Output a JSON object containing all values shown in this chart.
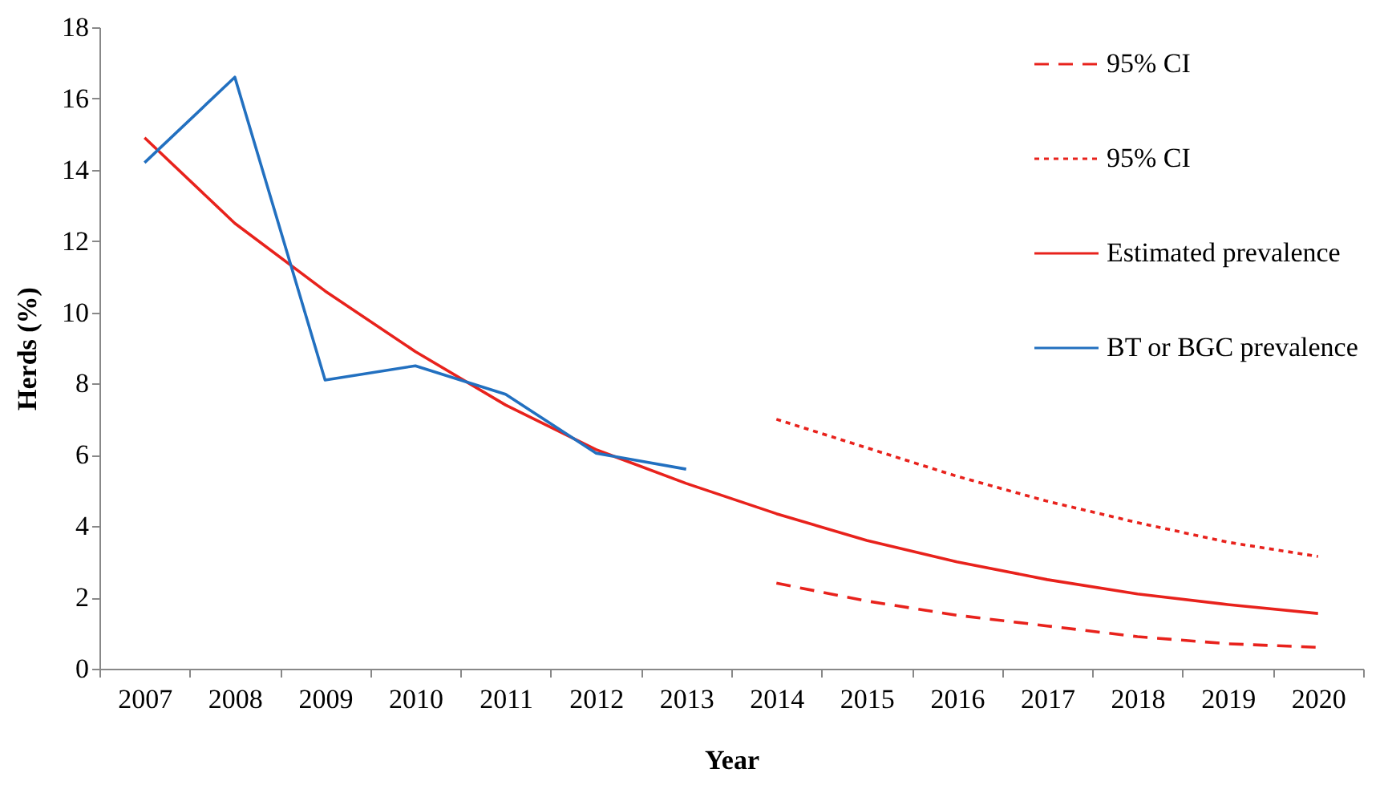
{
  "chart_data": {
    "type": "line",
    "xlabel": "Year",
    "ylabel": "Herds (%)",
    "categories": [
      "2007",
      "2008",
      "2009",
      "2010",
      "2011",
      "2012",
      "2013",
      "2014",
      "2015",
      "2016",
      "2017",
      "2018",
      "2019",
      "2020"
    ],
    "ylim": [
      0,
      18
    ],
    "yticks": [
      0,
      2,
      4,
      6,
      8,
      10,
      12,
      14,
      16,
      18
    ],
    "grid": false,
    "legend": "top right",
    "series": [
      {
        "name": "95% CI",
        "color": "#e8221c",
        "line_style": "dashed",
        "values": [
          null,
          null,
          null,
          null,
          null,
          null,
          null,
          2.4,
          1.9,
          1.5,
          1.2,
          0.9,
          0.7,
          0.6
        ]
      },
      {
        "name": "95% CI",
        "color": "#e8221c",
        "line_style": "dotted",
        "values": [
          null,
          null,
          null,
          null,
          null,
          null,
          null,
          7.0,
          6.2,
          5.4,
          4.7,
          4.1,
          3.55,
          3.15
        ]
      },
      {
        "name": "Estimated prevalence",
        "color": "#e8221c",
        "line_style": "solid",
        "values": [
          14.9,
          12.5,
          10.6,
          8.9,
          7.4,
          6.15,
          5.2,
          4.35,
          3.6,
          3.0,
          2.5,
          2.1,
          1.8,
          1.55
        ]
      },
      {
        "name": "BT or BGC prevalence",
        "color": "#2270c0",
        "line_style": "solid",
        "values": [
          14.2,
          16.6,
          8.1,
          8.5,
          7.7,
          6.05,
          5.6,
          null,
          null,
          null,
          null,
          null,
          null,
          null
        ]
      }
    ]
  }
}
